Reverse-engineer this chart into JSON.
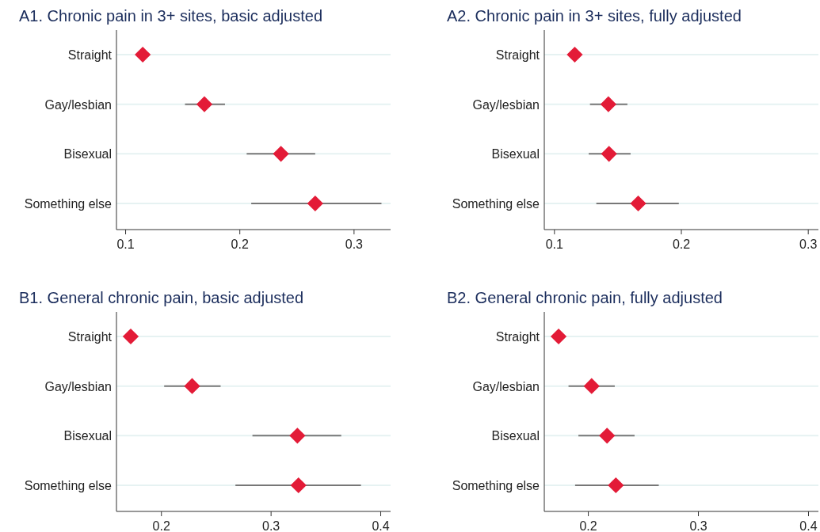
{
  "chart_data": [
    {
      "type": "scatter",
      "orientation": "horizontal",
      "title": "A1. Chronic pain in 3+ sites, basic adjusted",
      "categories": [
        "Straight",
        "Gay/lesbian",
        "Bisexual",
        "Something else"
      ],
      "values": [
        0.115,
        0.169,
        0.236,
        0.266
      ],
      "errors": [
        null,
        [
          0.152,
          0.187
        ],
        [
          0.206,
          0.266
        ],
        [
          0.21,
          0.324
        ]
      ],
      "color": "#e31b37",
      "marker": "diamond",
      "grid": "y",
      "xlim": [
        0.092,
        0.332
      ],
      "xticks": [
        0.1,
        0.2,
        0.3
      ]
    },
    {
      "type": "scatter",
      "orientation": "horizontal",
      "title": "A2. Chronic pain in 3+ sites, fully adjusted",
      "categories": [
        "Straight",
        "Gay/lesbian",
        "Bisexual",
        "Something else"
      ],
      "values": [
        0.116,
        0.1425,
        0.143,
        0.166
      ],
      "errors": [
        null,
        [
          0.128,
          0.1575
        ],
        [
          0.127,
          0.16
        ],
        [
          0.133,
          0.198
        ]
      ],
      "color": "#e31b37",
      "marker": "diamond",
      "grid": "y",
      "xlim": [
        0.092,
        0.308
      ],
      "xticks": [
        0.1,
        0.2,
        0.3
      ]
    },
    {
      "type": "scatter",
      "orientation": "horizontal",
      "title": "B1. General chronic pain, basic adjusted",
      "categories": [
        "Straight",
        "Gay/lesbian",
        "Bisexual",
        "Something else"
      ],
      "values": [
        0.172,
        0.228,
        0.324,
        0.325
      ],
      "errors": [
        null,
        [
          0.2025,
          0.254
        ],
        [
          0.283,
          0.364
        ],
        [
          0.2675,
          0.382
        ]
      ],
      "color": "#e31b37",
      "marker": "diamond",
      "grid": "y",
      "xlim": [
        0.159,
        0.409
      ],
      "xticks": [
        0.2,
        0.3,
        0.4
      ]
    },
    {
      "type": "scatter",
      "orientation": "horizontal",
      "title": "B2. General chronic pain, fully adjusted",
      "categories": [
        "Straight",
        "Gay/lesbian",
        "Bisexual",
        "Something else"
      ],
      "values": [
        0.173,
        0.203,
        0.217,
        0.225
      ],
      "errors": [
        null,
        [
          0.182,
          0.224
        ],
        [
          0.191,
          0.242
        ],
        [
          0.188,
          0.264
        ]
      ],
      "color": "#e31b37",
      "marker": "diamond",
      "grid": "y",
      "xlim": [
        0.16,
        0.409
      ],
      "xticks": [
        0.2,
        0.3,
        0.4
      ]
    }
  ]
}
